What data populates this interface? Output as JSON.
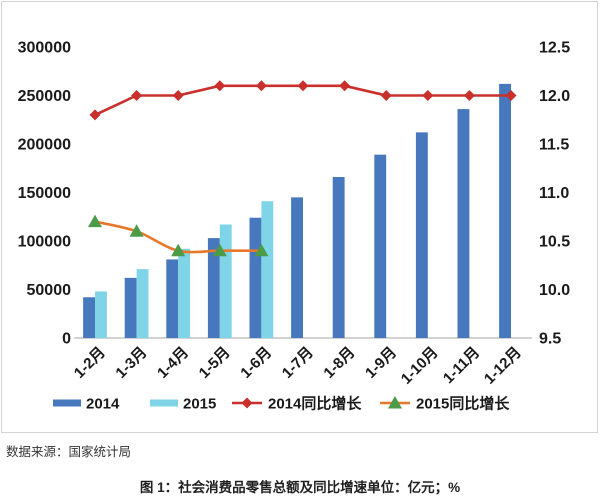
{
  "chart_data": {
    "type": "bar",
    "categories": [
      "1-2月",
      "1-3月",
      "1-4月",
      "1-5月",
      "1-6月",
      "1-7月",
      "1-8月",
      "1-9月",
      "1-10月",
      "1-11月",
      "1-12月"
    ],
    "series": [
      {
        "name": "2014",
        "type": "bar",
        "axis": "left",
        "color": "#4778BE",
        "values": [
          42000,
          62000,
          81000,
          103000,
          124000,
          145000,
          166000,
          189000,
          212000,
          236000,
          262000
        ]
      },
      {
        "name": "2015",
        "type": "bar",
        "axis": "left",
        "color": "#80D4E8",
        "values": [
          48000,
          71000,
          92000,
          117000,
          141000,
          null,
          null,
          null,
          null,
          null,
          null
        ]
      },
      {
        "name": "2014同比增长",
        "type": "line",
        "axis": "right",
        "color": "#C9302C",
        "marker": "diamond",
        "marker_color": "#C9302C",
        "smooth": false,
        "values": [
          11.8,
          12.0,
          12.0,
          12.1,
          12.1,
          12.1,
          12.1,
          12.0,
          12.0,
          12.0,
          12.0
        ]
      },
      {
        "name": "2015同比增长",
        "type": "line",
        "axis": "right",
        "color": "#E8782A",
        "marker": "triangle",
        "marker_color": "#4C9B47",
        "smooth": true,
        "values": [
          10.7,
          10.6,
          10.4,
          10.4,
          10.4,
          null,
          null,
          null,
          null,
          null,
          null
        ]
      }
    ],
    "y_left": {
      "lim": [
        0,
        300000
      ],
      "tick_labels": [
        "0",
        "50000",
        "100000",
        "150000",
        "200000",
        "250000",
        "300000"
      ]
    },
    "y_right": {
      "lim": [
        9.5,
        12.5
      ],
      "tick_labels": [
        "9.5",
        "10.0",
        "10.5",
        "11.0",
        "11.5",
        "12.0",
        "12.5"
      ]
    },
    "grid": false,
    "legend": "bottom"
  },
  "source": "数据来源：国家统计局",
  "caption": "图 1：社会消费品零售总额及同比增速单位：亿元；%"
}
